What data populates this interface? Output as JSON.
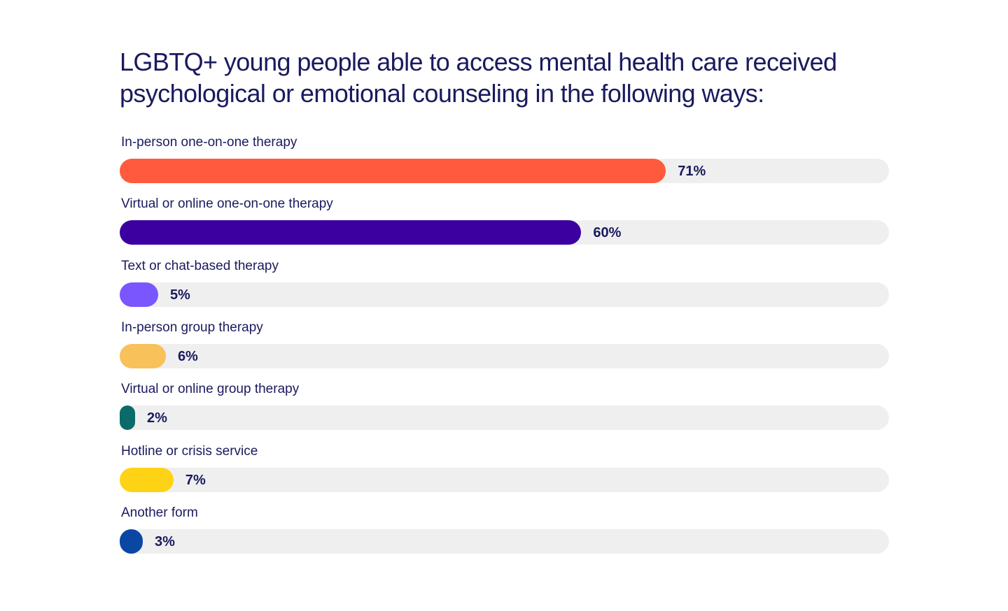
{
  "chart_data": {
    "type": "bar",
    "orientation": "horizontal",
    "title": "LGBTQ+ young people able to access mental health care received psychological or emotional counseling in the following ways:",
    "categories": [
      "In-person one-on-one therapy",
      "Virtual or online one-on-one therapy",
      "Text or chat-based therapy",
      "In-person group therapy",
      "Virtual or online group therapy",
      "Hotline or crisis service",
      "Another form"
    ],
    "values": [
      71,
      60,
      5,
      6,
      2,
      7,
      3
    ],
    "value_labels": [
      "71%",
      "60%",
      "5%",
      "6%",
      "2%",
      "7%",
      "3%"
    ],
    "colors": [
      "#ff5a3d",
      "#3d00a0",
      "#7a56ff",
      "#f9c15a",
      "#0b6b6a",
      "#ffd315",
      "#0a47a3"
    ],
    "track_color": "#efefef",
    "xlim": [
      0,
      100
    ],
    "grid": false,
    "legend": "none"
  }
}
